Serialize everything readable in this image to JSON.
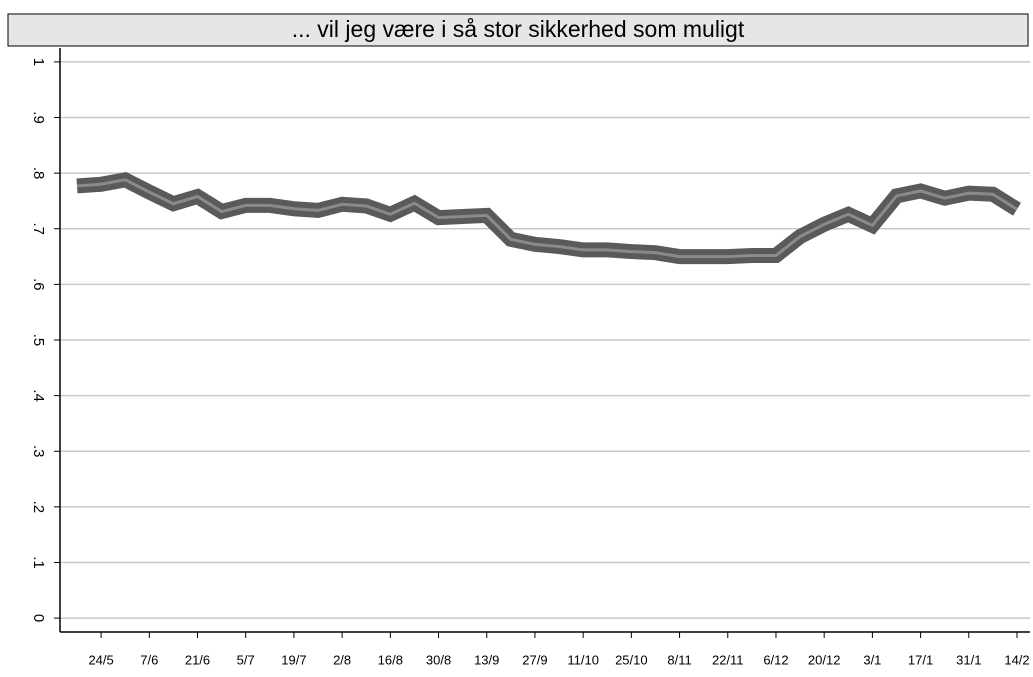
{
  "chart_data": {
    "type": "line",
    "title": "... vil jeg være i så stor sikkerhed som muligt",
    "categories": [
      null,
      "24/5",
      null,
      "7/6",
      null,
      "21/6",
      null,
      "5/7",
      null,
      "19/7",
      null,
      "2/8",
      null,
      "16/8",
      null,
      "30/8",
      null,
      "13/9",
      null,
      "27/9",
      null,
      "11/10",
      null,
      "25/10",
      null,
      "8/11",
      null,
      "22/11",
      null,
      "6/12",
      null,
      "20/12",
      null,
      "3/1",
      null,
      "17/1",
      null,
      "31/1",
      null,
      "14/2"
    ],
    "values": [
      0.777,
      0.78,
      0.788,
      0.766,
      0.745,
      0.758,
      0.731,
      0.742,
      0.742,
      0.736,
      0.733,
      0.744,
      0.741,
      0.726,
      0.746,
      0.72,
      0.722,
      0.724,
      0.681,
      0.672,
      0.668,
      0.662,
      0.662,
      0.659,
      0.657,
      0.65,
      0.65,
      0.65,
      0.652,
      0.652,
      0.686,
      0.708,
      0.726,
      0.706,
      0.759,
      0.768,
      0.755,
      0.764,
      0.762,
      0.735
    ],
    "color": "#5a5a5a",
    "ylim": [
      -0.025,
      1.025
    ],
    "yticks": [
      0,
      {
        "value": 0.1,
        "label": ".1"
      },
      {
        "value": 0.2,
        "label": ".2"
      },
      {
        "value": 0.3,
        "label": ".3"
      },
      {
        "value": 0.4,
        "label": ".4"
      },
      {
        "value": 0.5,
        "label": ".5"
      },
      {
        "value": 0.6,
        "label": ".6"
      },
      {
        "value": 0.7,
        "label": ".7"
      },
      {
        "value": 0.8,
        "label": ".8"
      },
      {
        "value": 0.9,
        "label": ".9"
      },
      1
    ],
    "grid": true
  }
}
